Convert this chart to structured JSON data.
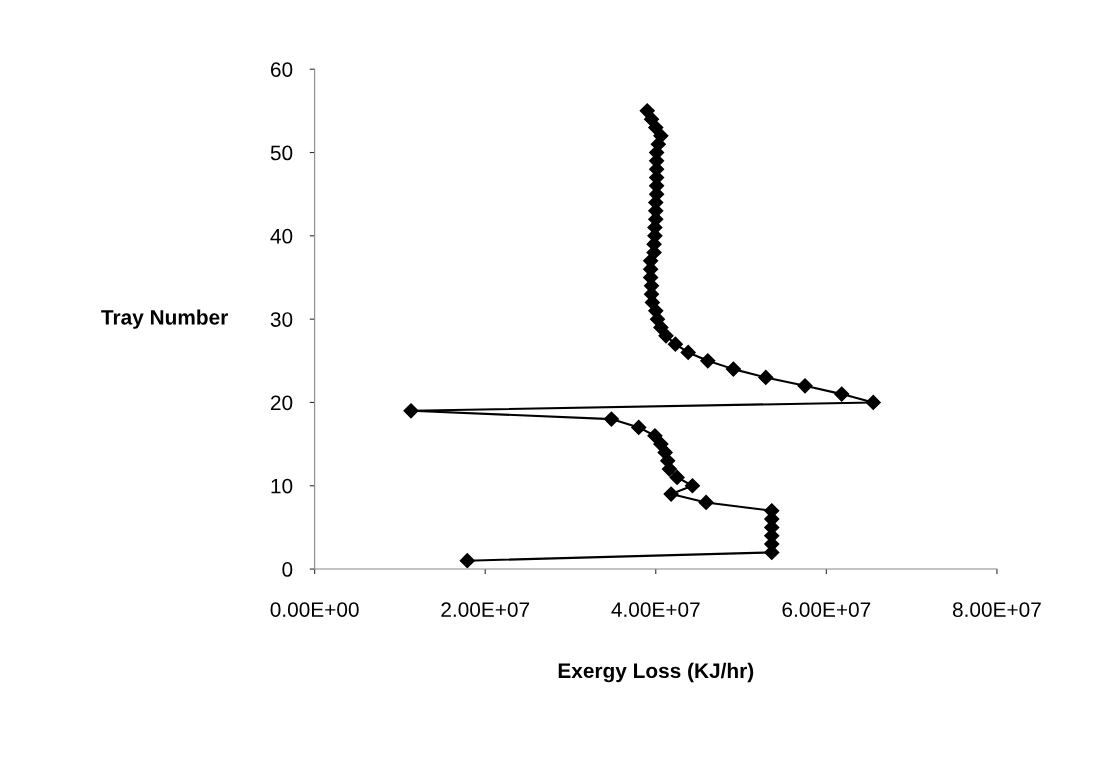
{
  "chart_data": {
    "type": "line",
    "xlabel": "Exergy Loss (KJ/hr)",
    "ylabel": "Tray Number",
    "marker": "diamond",
    "line_style": "solid",
    "grid": false,
    "xlim": [
      0,
      80000000
    ],
    "xticks": [
      {
        "value": 0,
        "label": "0.00E+00"
      },
      {
        "value": 20000000,
        "label": "2.00E+07"
      },
      {
        "value": 40000000,
        "label": "4.00E+07"
      },
      {
        "value": 60000000,
        "label": "6.00E+07"
      },
      {
        "value": 80000000,
        "label": "8.00E+07"
      }
    ],
    "ylim": [
      0,
      60
    ],
    "yticks": [
      0,
      10,
      20,
      30,
      40,
      50,
      60
    ],
    "series": [
      {
        "color": "#000000",
        "x": [
          17900000,
          53600000,
          53600000,
          53600000,
          53600000,
          53600000,
          53600000,
          45900000,
          41800000,
          44300000,
          42500000,
          41600000,
          41400000,
          41100000,
          40600000,
          39900000,
          38000000,
          34800000,
          11300000,
          65500000,
          61800000,
          57500000,
          52900000,
          49100000,
          46100000,
          43800000,
          42300000,
          41200000,
          40600000,
          40200000,
          40000000,
          39600000,
          39500000,
          39500000,
          39400000,
          39400000,
          39400000,
          39800000,
          39800000,
          39900000,
          39900000,
          40000000,
          40000000,
          40000000,
          40100000,
          40100000,
          40100000,
          40100000,
          40100000,
          40100000,
          40300000,
          40600000,
          40000000,
          39500000,
          39000000
        ],
        "values": [
          1,
          2,
          3,
          4,
          5,
          6,
          7,
          8,
          9,
          10,
          11,
          12,
          13,
          14,
          15,
          16,
          17,
          18,
          19,
          20,
          21,
          22,
          23,
          24,
          25,
          26,
          27,
          28,
          29,
          30,
          31,
          32,
          33,
          34,
          35,
          36,
          37,
          38,
          39,
          40,
          41,
          42,
          43,
          44,
          45,
          46,
          47,
          48,
          49,
          50,
          51,
          52,
          53,
          54,
          55
        ]
      }
    ]
  }
}
